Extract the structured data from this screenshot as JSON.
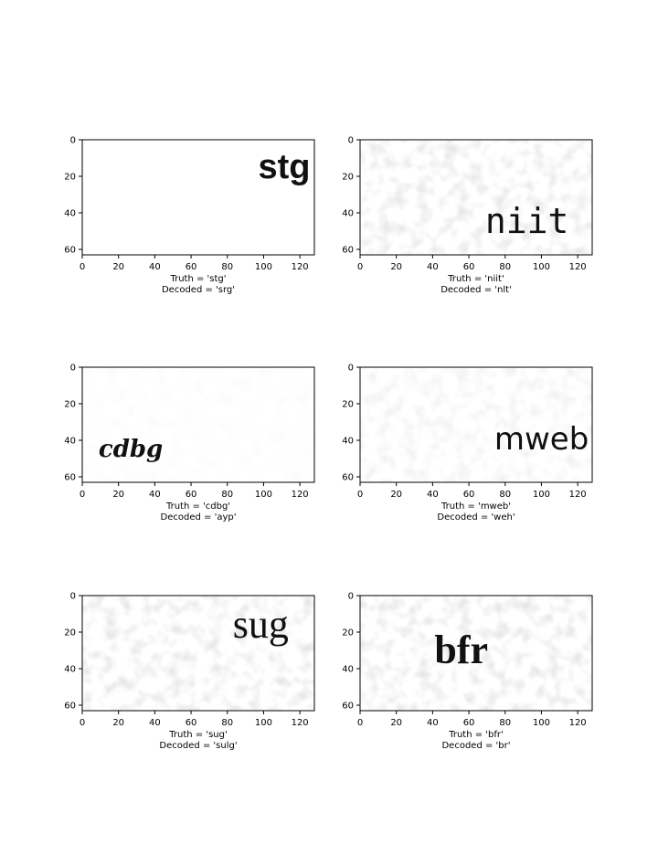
{
  "chart_data": [
    {
      "type": "image",
      "word": "stg",
      "style": "bold-sans",
      "noise": "none",
      "xlim": [
        0,
        128
      ],
      "ylim": [
        63,
        0
      ],
      "xticks": [
        0,
        20,
        40,
        60,
        80,
        100,
        120
      ],
      "yticks": [
        0,
        20,
        40,
        60
      ],
      "text_position": [
        97,
        21
      ],
      "truth_label": "Truth = 'stg'",
      "decoded_label": "Decoded = 'srg'"
    },
    {
      "type": "image",
      "word": "niit",
      "style": "slab-serif",
      "noise": "heavy",
      "xlim": [
        0,
        128
      ],
      "ylim": [
        63,
        0
      ],
      "xticks": [
        0,
        20,
        40,
        60,
        80,
        100,
        120
      ],
      "yticks": [
        0,
        20,
        40,
        60
      ],
      "text_position": [
        69,
        51
      ],
      "truth_label": "Truth = 'niit'",
      "decoded_label": "Decoded = 'nlt'"
    },
    {
      "type": "image",
      "word": "cdbg",
      "style": "script",
      "noise": "light",
      "xlim": [
        0,
        128
      ],
      "ylim": [
        63,
        0
      ],
      "xticks": [
        0,
        20,
        40,
        60,
        80,
        100,
        120
      ],
      "yticks": [
        0,
        20,
        40,
        60
      ],
      "text_position": [
        9,
        49
      ],
      "truth_label": "Truth = 'cdbg'",
      "decoded_label": "Decoded = 'ayp'"
    },
    {
      "type": "image",
      "word": "mweb",
      "style": "plain-sans",
      "noise": "medium",
      "xlim": [
        0,
        128
      ],
      "ylim": [
        63,
        0
      ],
      "xticks": [
        0,
        20,
        40,
        60,
        80,
        100,
        120
      ],
      "yticks": [
        0,
        20,
        40,
        60
      ],
      "text_position": [
        74,
        45
      ],
      "truth_label": "Truth = 'mweb'",
      "decoded_label": "Decoded = 'weh'"
    },
    {
      "type": "image",
      "word": "sug",
      "style": "serif",
      "noise": "heavy",
      "xlim": [
        0,
        128
      ],
      "ylim": [
        63,
        0
      ],
      "xticks": [
        0,
        20,
        40,
        60,
        80,
        100,
        120
      ],
      "yticks": [
        0,
        20,
        40,
        60
      ],
      "text_position": [
        83,
        23
      ],
      "truth_label": "Truth = 'sug'",
      "decoded_label": "Decoded = 'sulg'"
    },
    {
      "type": "image",
      "word": "bfr",
      "style": "serif-bold",
      "noise": "heavy",
      "xlim": [
        0,
        128
      ],
      "ylim": [
        63,
        0
      ],
      "xticks": [
        0,
        20,
        40,
        60,
        80,
        100,
        120
      ],
      "yticks": [
        0,
        20,
        40,
        60
      ],
      "text_position": [
        41,
        37
      ],
      "truth_label": "Truth = 'bfr'",
      "decoded_label": "Decoded = 'br'"
    }
  ],
  "colors": {
    "ink": "#111111",
    "axis": "#000000",
    "noise": "#9a9a9a",
    "background": "#ffffff"
  }
}
